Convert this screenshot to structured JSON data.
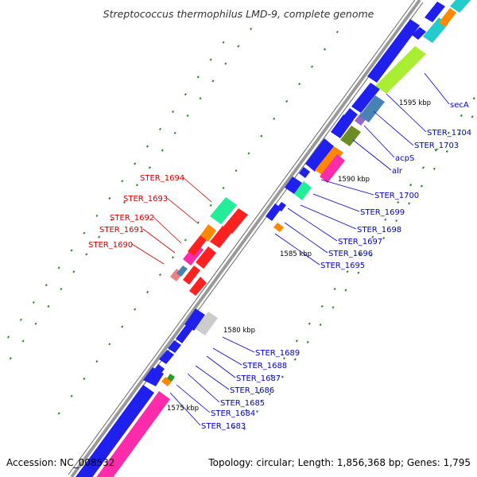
{
  "title": "Streptococcus thermophilus LMD-9, complete genome",
  "footer": {
    "accession": "Accession: NC_008532",
    "summary": "Topology: circular; Length: 1,856,368 bp; Genes: 1,795"
  },
  "colors": {
    "backbone": "#999999",
    "forward_label": "#0000cc",
    "reverse_label": "#cc0000",
    "dots": "#2a8a2a"
  },
  "scale_ticks": [
    "1575 kbp",
    "1580 kbp",
    "1585 kbp",
    "1590 kbp",
    "1595 kbp"
  ],
  "forward_labels": [
    "secA",
    "STER_1704",
    "STER_1703",
    "acpS",
    "alr",
    "STER_1700",
    "STER_1699",
    "STER_1698",
    "STER_1697",
    "STER_1696",
    "STER_1695",
    "STER_1689",
    "STER_1688",
    "STER_1687",
    "STER_1686",
    "STER_1685",
    "STER_1684",
    "STER_1683"
  ],
  "reverse_labels": [
    "STER_1694",
    "STER_1693",
    "STER_1692",
    "STER_1691",
    "STER_1690"
  ]
}
